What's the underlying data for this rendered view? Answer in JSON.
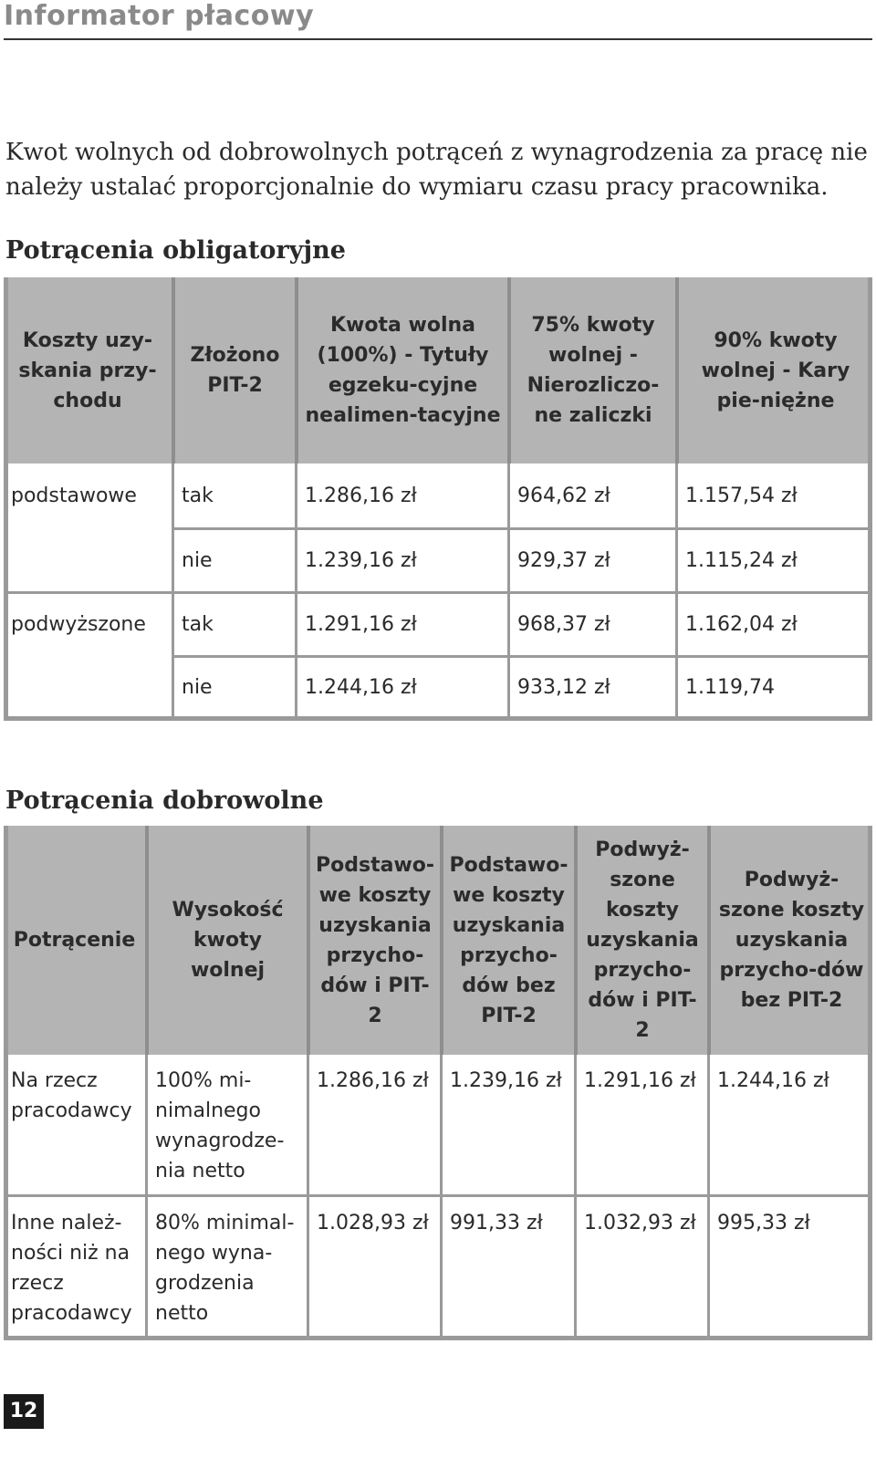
{
  "header": {
    "title": "Informator płacowy"
  },
  "intro": "Kwot wolnych od dobrowolnych potrąceń z wynagrodzenia za pracę nie należy ustalać proporcjonalnie do wymiaru czasu pracy pracownika.",
  "section1": {
    "title": "Potrącenia obligatoryjne",
    "headers": [
      "Koszty uzy-skania przy-chodu",
      "Złożono PIT-2",
      "Kwota wolna (100%) - Tytuły egzeku-cyjne nealimen-tacyjne",
      "75% kwoty wolnej - Nierozliczo-ne zaliczki",
      "90% kwoty wolnej - Kary pie-niężne"
    ],
    "rows": [
      {
        "koszty": "podstawowe",
        "pit2": "tak",
        "kw100": "1.286,16 zł",
        "kw75": "964,62 zł",
        "kw90": "1.157,54 zł"
      },
      {
        "koszty": "",
        "pit2": "nie",
        "kw100": "1.239,16 zł",
        "kw75": "929,37 zł",
        "kw90": "1.115,24 zł"
      },
      {
        "koszty": "podwyższone",
        "pit2": "tak",
        "kw100": "1.291,16 zł",
        "kw75": "968,37 zł",
        "kw90": "1.162,04 zł"
      },
      {
        "koszty": "",
        "pit2": "nie",
        "kw100": "1.244,16 zł",
        "kw75": "933,12 zł",
        "kw90": "1.119,74"
      }
    ]
  },
  "section2": {
    "title": "Potrącenia dobrowolne",
    "headers": [
      "Potrącenie",
      "Wysokość kwoty wolnej",
      "Podstawo-we koszty uzyskania przycho-dów i PIT-2",
      "Podstawo-we koszty uzyskania przycho-dów bez PIT-2",
      "Podwyż-szone koszty uzyskania przycho-dów i PIT-2",
      "Podwyż-szone koszty uzyskania przycho-dów bez PIT-2"
    ],
    "rows": [
      {
        "potracenie": "Na rzecz pracodawcy",
        "wysokosc": "100% mi-nimalnego wynagrodze-nia netto",
        "c1": "1.286,16 zł",
        "c2": "1.239,16 zł",
        "c3": "1.291,16 zł",
        "c4": "1.244,16 zł"
      },
      {
        "potracenie": "Inne należ-ności niż na rzecz pracodawcy",
        "wysokosc": "80% minimal-nego wyna-grodzenia netto",
        "c1": "1.028,93 zł",
        "c2": "991,33 zł",
        "c3": "1.032,93 zł",
        "c4": "995,33 zł"
      }
    ]
  },
  "footer": {
    "page_number": "12"
  }
}
